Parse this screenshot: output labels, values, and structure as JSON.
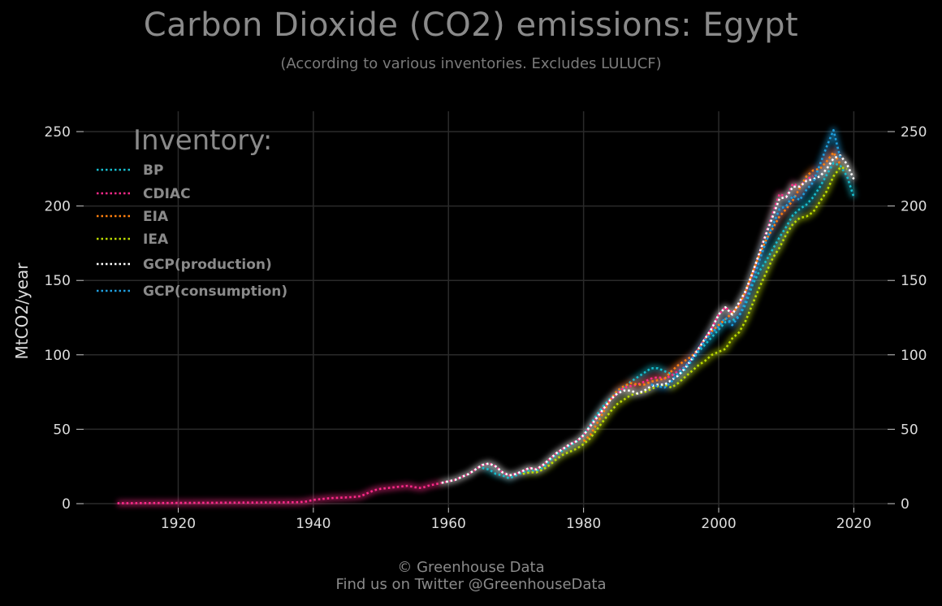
{
  "header": {
    "title": "Carbon Dioxide (CO2) emissions: Egypt",
    "subtitle": "(According to various inventories. Excludes LULUCF)"
  },
  "footer": {
    "line1": "© Greenhouse Data",
    "line2": "Find us on Twitter @GreenhouseData"
  },
  "chart_data": {
    "type": "line",
    "title": "Carbon Dioxide (CO2) emissions: Egypt",
    "subtitle": "(According to various inventories. Excludes LULUCF)",
    "xlabel": "",
    "ylabel": "MtCO2/year",
    "xlim": [
      1906,
      2025
    ],
    "ylim": [
      -3,
      250
    ],
    "x_ticks": [
      1920,
      1940,
      1960,
      1980,
      2000,
      2020
    ],
    "y_ticks": [
      0,
      50,
      100,
      150,
      200,
      250
    ],
    "grid": true,
    "legend_title": "Inventory:",
    "legend_position": "top-left",
    "series": [
      {
        "name": "BP",
        "color": "#17becf",
        "x": [
          1965,
          1966,
          1967,
          1968,
          1969,
          1970,
          1971,
          1972,
          1973,
          1974,
          1975,
          1976,
          1977,
          1978,
          1979,
          1980,
          1981,
          1982,
          1983,
          1984,
          1985,
          1986,
          1987,
          1988,
          1989,
          1990,
          1991,
          1992,
          1993,
          1994,
          1995,
          1996,
          1997,
          1998,
          1999,
          2000,
          2001,
          2002,
          2003,
          2004,
          2005,
          2006,
          2007,
          2008,
          2009,
          2010,
          2011,
          2012,
          2013,
          2014,
          2015,
          2016,
          2017,
          2018,
          2019,
          2020
        ],
        "values": [
          24,
          23,
          20,
          19,
          17,
          19,
          21,
          22,
          22,
          24,
          29,
          33,
          36,
          39,
          42,
          46,
          53,
          60,
          66,
          71,
          75,
          78,
          82,
          85,
          88,
          91,
          91,
          89,
          87,
          86,
          90,
          96,
          102,
          107,
          112,
          117,
          122,
          123,
          126,
          134,
          147,
          156,
          163,
          171,
          179,
          186,
          194,
          198,
          201,
          206,
          213,
          221,
          229,
          227,
          220,
          206
        ]
      },
      {
        "name": "CDIAC",
        "color": "#ff2a8a",
        "x": [
          1911,
          1915,
          1920,
          1925,
          1930,
          1935,
          1938,
          1939,
          1940,
          1941,
          1942,
          1943,
          1944,
          1945,
          1946,
          1947,
          1948,
          1949,
          1950,
          1951,
          1952,
          1953,
          1954,
          1955,
          1956,
          1957,
          1958,
          1959,
          1960,
          1961,
          1962,
          1963,
          1964,
          1965,
          1966,
          1967,
          1968,
          1969,
          1970,
          1971,
          1972,
          1973,
          1974,
          1975,
          1976,
          1977,
          1978,
          1979,
          1980,
          1981,
          1982,
          1983,
          1984,
          1985,
          1986,
          1987,
          1988,
          1989,
          1990,
          1991,
          1992,
          1993,
          1994,
          1995,
          1996,
          1997,
          1998,
          1999,
          2000,
          2001,
          2002,
          2003,
          2004,
          2005,
          2006,
          2007,
          2008,
          2009,
          2010,
          2011,
          2012,
          2013,
          2014
        ],
        "values": [
          0.3,
          0.4,
          0.5,
          0.6,
          0.7,
          0.8,
          1,
          1.5,
          2.5,
          3,
          3.5,
          3.8,
          4,
          4.2,
          4.5,
          5,
          7,
          9,
          10,
          10.5,
          11,
          11.5,
          12,
          11,
          10.5,
          12,
          13,
          14,
          15,
          16,
          18,
          20,
          23,
          26,
          27,
          25,
          21,
          19,
          20,
          22,
          24,
          23,
          26,
          30,
          34,
          37,
          40,
          42,
          46,
          52,
          58,
          64,
          70,
          74,
          78,
          79,
          80,
          82,
          84,
          85,
          84,
          86,
          89,
          92,
          97,
          104,
          111,
          118,
          127,
          132,
          128,
          134,
          142,
          154,
          168,
          182,
          195,
          208,
          206,
          215,
          213,
          218,
          220
        ]
      },
      {
        "name": "EIA",
        "color": "#ff7f0e",
        "x": [
          1980,
          1981,
          1982,
          1983,
          1984,
          1985,
          1986,
          1987,
          1988,
          1989,
          1990,
          1991,
          1992,
          1993,
          1994,
          1995,
          1996,
          1997,
          1998,
          1999,
          2000,
          2001,
          2002,
          2003,
          2004,
          2005,
          2006,
          2007,
          2008,
          2009,
          2010,
          2011,
          2012,
          2013,
          2014,
          2015,
          2016,
          2017,
          2018
        ],
        "values": [
          42,
          46,
          54,
          62,
          70,
          76,
          79,
          81,
          80,
          80,
          82,
          83,
          84,
          89,
          93,
          96,
          99,
          104,
          111,
          116,
          120,
          124,
          128,
          133,
          143,
          155,
          167,
          177,
          185,
          193,
          198,
          204,
          212,
          220,
          224,
          225,
          230,
          236,
          228
        ]
      },
      {
        "name": "IEA",
        "color": "#bcdc00",
        "x": [
          1971,
          1972,
          1973,
          1974,
          1975,
          1976,
          1977,
          1978,
          1979,
          1980,
          1981,
          1982,
          1983,
          1984,
          1985,
          1986,
          1987,
          1988,
          1989,
          1990,
          1991,
          1992,
          1993,
          1994,
          1995,
          1996,
          1997,
          1998,
          1999,
          2000,
          2001,
          2002,
          2003,
          2004,
          2005,
          2006,
          2007,
          2008,
          2009,
          2010,
          2011,
          2012,
          2013,
          2014,
          2015,
          2016,
          2017,
          2018,
          2019
        ],
        "values": [
          20,
          21,
          21,
          23,
          26,
          30,
          33,
          35,
          37,
          40,
          44,
          50,
          56,
          62,
          67,
          70,
          73,
          74,
          75,
          77,
          79,
          80,
          78,
          81,
          85,
          89,
          93,
          96,
          100,
          102,
          104,
          111,
          115,
          123,
          134,
          145,
          155,
          165,
          172,
          181,
          188,
          192,
          193,
          196,
          203,
          210,
          220,
          226,
          225
        ]
      },
      {
        "name": "GCP(production)",
        "color": "#ffffff",
        "x": [
          1959,
          1960,
          1961,
          1962,
          1963,
          1964,
          1965,
          1966,
          1967,
          1968,
          1969,
          1970,
          1971,
          1972,
          1973,
          1974,
          1975,
          1976,
          1977,
          1978,
          1979,
          1980,
          1981,
          1982,
          1983,
          1984,
          1985,
          1986,
          1987,
          1988,
          1989,
          1990,
          1991,
          1992,
          1993,
          1994,
          1995,
          1996,
          1997,
          1998,
          1999,
          2000,
          2001,
          2002,
          2003,
          2004,
          2005,
          2006,
          2007,
          2008,
          2009,
          2010,
          2011,
          2012,
          2013,
          2014,
          2015,
          2016,
          2017,
          2018,
          2019,
          2020
        ],
        "values": [
          14,
          15,
          16,
          18,
          20,
          23,
          26,
          27,
          25,
          21,
          19,
          20,
          22,
          24,
          23,
          26,
          30,
          34,
          37,
          40,
          42,
          46,
          52,
          58,
          64,
          70,
          74,
          76,
          76,
          74,
          76,
          79,
          80,
          80,
          83,
          86,
          91,
          97,
          104,
          111,
          118,
          127,
          132,
          127,
          135,
          143,
          155,
          168,
          181,
          193,
          205,
          206,
          213,
          213,
          217,
          218,
          220,
          225,
          232,
          234,
          228,
          218
        ]
      },
      {
        "name": "GCP(consumption)",
        "color": "#1f9fdf",
        "x": [
          1990,
          1991,
          1992,
          1993,
          1994,
          1995,
          1996,
          1997,
          1998,
          1999,
          2000,
          2001,
          2002,
          2003,
          2004,
          2005,
          2006,
          2007,
          2008,
          2009,
          2010,
          2011,
          2012,
          2013,
          2014,
          2015,
          2016,
          2017,
          2018
        ],
        "values": [
          80,
          79,
          78,
          82,
          88,
          92,
          97,
          103,
          110,
          115,
          119,
          125,
          120,
          126,
          136,
          149,
          163,
          176,
          187,
          198,
          200,
          207,
          204,
          211,
          216,
          228,
          240,
          251,
          232
        ]
      }
    ]
  }
}
